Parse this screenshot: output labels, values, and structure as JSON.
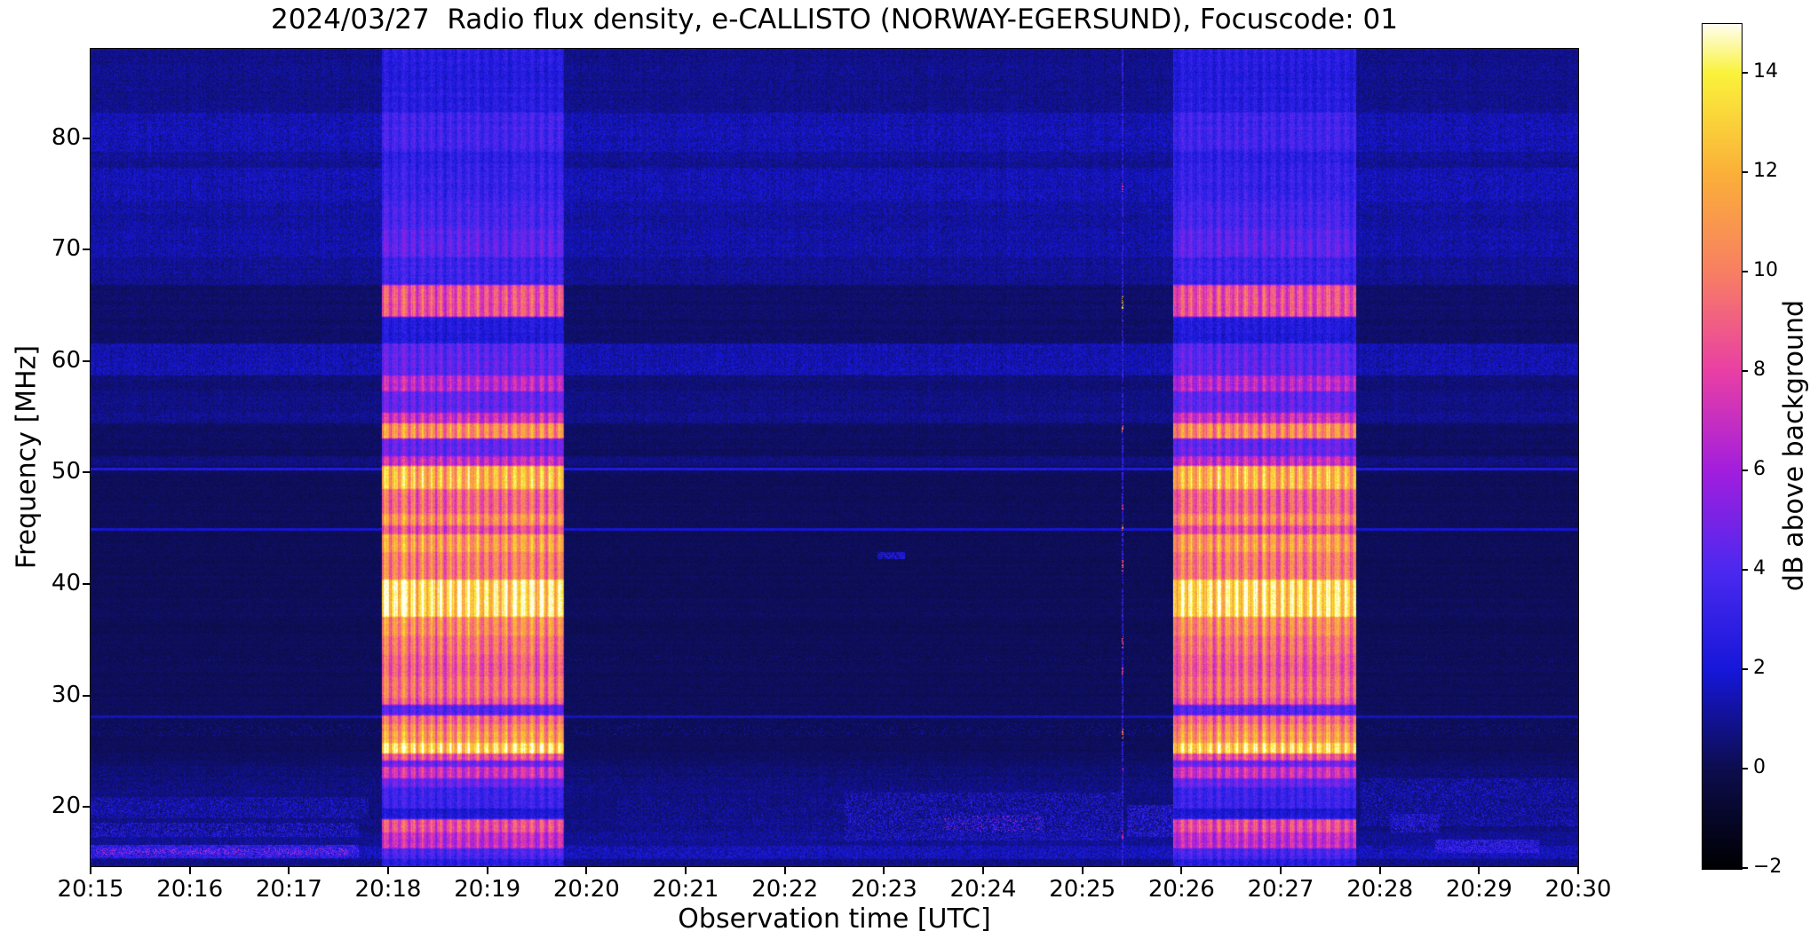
{
  "figure": {
    "title": "2024/03/27  Radio flux density, e-CALLISTO (NORWAY-EGERSUND), Focuscode: 01",
    "xlabel": "Observation time [UTC]",
    "ylabel": "Frequency [MHz]"
  },
  "axes": {
    "x_tick_labels": [
      "20:15",
      "20:16",
      "20:17",
      "20:18",
      "20:19",
      "20:20",
      "20:21",
      "20:22",
      "20:23",
      "20:24",
      "20:25",
      "20:26",
      "20:27",
      "20:28",
      "20:29",
      "20:30"
    ],
    "y_tick_labels": [
      "80",
      "70",
      "60",
      "50",
      "40",
      "30",
      "20"
    ],
    "y_tick_values": [
      80,
      70,
      60,
      50,
      40,
      30,
      20
    ]
  },
  "colorbar": {
    "label": "dB above background",
    "tick_labels": [
      "14",
      "12",
      "10",
      "8",
      "6",
      "4",
      "2",
      "0",
      "−2"
    ],
    "tick_values": [
      14,
      12,
      10,
      8,
      6,
      4,
      2,
      0,
      -2
    ],
    "vmin": -2,
    "vmax": 15
  },
  "chart_data": {
    "type": "heatmap",
    "title": "2024/03/27  Radio flux density, e-CALLISTO (NORWAY-EGERSUND), Focuscode: 01",
    "xlabel": "Observation time [UTC]",
    "ylabel": "Frequency [MHz]",
    "date": "2024/03/27",
    "station": "NORWAY-EGERSUND",
    "focuscode": "01",
    "x_range_utc": [
      "20:15",
      "20:30"
    ],
    "duration_min": 15,
    "y_range_mhz": [
      14.7,
      88.0
    ],
    "value_unit": "dB above background",
    "value_range": [
      -2,
      15
    ],
    "grid": false,
    "colormap_stops": [
      [
        -2,
        "#000002"
      ],
      [
        0,
        "#0d0d4e"
      ],
      [
        2,
        "#1617d9"
      ],
      [
        4,
        "#4c29f0"
      ],
      [
        6,
        "#a21edd"
      ],
      [
        8,
        "#e93fa5"
      ],
      [
        10,
        "#f87f63"
      ],
      [
        12,
        "#fbb039"
      ],
      [
        14,
        "#faf23b"
      ],
      [
        15,
        "#fffef0"
      ]
    ],
    "bursts": [
      {
        "start_utc": "20:17:56",
        "end_utc": "20:19:46",
        "t0_min": 2.93,
        "t1_min": 4.77
      },
      {
        "start_utc": "20:25:55",
        "end_utc": "20:27:46",
        "t0_min": 10.91,
        "t1_min": 12.76
      }
    ],
    "vertical_line": {
      "utc": "20:25:25",
      "t_min": 10.405,
      "base_db": 3.2,
      "dash_fraction": 0.6,
      "bright_dots": [
        [
          75.2,
          75.9,
          7
        ],
        [
          64.6,
          65.8,
          13
        ],
        [
          53.6,
          54.3,
          9
        ],
        [
          46.5,
          47.2,
          7.5
        ],
        [
          44.6,
          45.5,
          10
        ],
        [
          41.0,
          42.2,
          8.5
        ],
        [
          34.3,
          35.4,
          8
        ],
        [
          31.8,
          32.6,
          8
        ],
        [
          26.2,
          27.0,
          10
        ],
        [
          23.0,
          23.6,
          6
        ],
        [
          17.2,
          18.0,
          7
        ]
      ]
    },
    "bands_f0_f1_bgdb_burstdb": [
      [
        82.3,
        88.0,
        0.9,
        2.6
      ],
      [
        78.8,
        82.3,
        1.5,
        3.6
      ],
      [
        77.3,
        78.8,
        1.0,
        2.9
      ],
      [
        74.3,
        77.3,
        1.5,
        3.3
      ],
      [
        71.8,
        74.3,
        1.2,
        3.8
      ],
      [
        69.3,
        71.8,
        1.3,
        4.4
      ],
      [
        66.8,
        69.3,
        1.0,
        3.4
      ],
      [
        64.0,
        66.8,
        0.4,
        8.6
      ],
      [
        61.6,
        64.0,
        0.4,
        2.4
      ],
      [
        58.7,
        61.6,
        1.4,
        4.4
      ],
      [
        57.3,
        58.7,
        0.6,
        6.6
      ],
      [
        55.4,
        57.3,
        0.8,
        4.6
      ],
      [
        54.4,
        55.4,
        0.9,
        7.2
      ],
      [
        53.1,
        54.4,
        0.4,
        10.6
      ],
      [
        51.5,
        53.1,
        0.3,
        4.6
      ],
      [
        50.6,
        51.5,
        0.7,
        7.0
      ],
      [
        48.5,
        50.6,
        0.2,
        12.2
      ],
      [
        46.3,
        48.5,
        0.2,
        9.2
      ],
      [
        45.3,
        46.3,
        0.2,
        10.6
      ],
      [
        44.5,
        45.3,
        0.2,
        8.2
      ],
      [
        42.9,
        44.5,
        0.15,
        11.2
      ],
      [
        40.4,
        42.9,
        0.15,
        10.0
      ],
      [
        37.1,
        40.4,
        0.15,
        13.8
      ],
      [
        35.4,
        37.1,
        0.15,
        10.6
      ],
      [
        33.7,
        35.4,
        0.15,
        9.6
      ],
      [
        31.7,
        33.7,
        0.15,
        9.0
      ],
      [
        29.8,
        31.7,
        0.15,
        9.6
      ],
      [
        29.2,
        29.8,
        0.2,
        8.6
      ],
      [
        28.2,
        29.2,
        0.2,
        4.2
      ],
      [
        27.4,
        28.2,
        0.2,
        9.2
      ],
      [
        26.8,
        27.4,
        0.2,
        10.4
      ],
      [
        25.8,
        26.8,
        0.2,
        11.2
      ],
      [
        24.8,
        25.8,
        0.2,
        13.4
      ],
      [
        24.2,
        24.8,
        0.3,
        8.4
      ],
      [
        23.6,
        24.2,
        0.4,
        4.6
      ],
      [
        22.6,
        23.6,
        0.5,
        7.2
      ],
      [
        21.8,
        22.6,
        0.6,
        4.8
      ],
      [
        19.9,
        21.8,
        0.7,
        3.4
      ],
      [
        18.9,
        19.9,
        0.7,
        2.2
      ],
      [
        17.7,
        18.9,
        0.8,
        8.4
      ],
      [
        16.3,
        17.7,
        1.0,
        7.0
      ],
      [
        15.3,
        16.3,
        1.3,
        3.8
      ],
      [
        14.7,
        15.3,
        0.8,
        2.6
      ]
    ],
    "narrowband_lines_mhz": [
      {
        "f": 50.3,
        "db": 2.4
      },
      {
        "f": 44.9,
        "db": 1.9
      },
      {
        "f": 28.1,
        "db": 1.5
      }
    ],
    "rfi_patches_t0_t1_f0_f1_density_db": [
      [
        0,
        2.8,
        19.0,
        20.9,
        0.5,
        2.2
      ],
      [
        0,
        2.7,
        17.3,
        18.6,
        0.45,
        2.8
      ],
      [
        0,
        2.7,
        15.4,
        16.6,
        0.8,
        3.6
      ],
      [
        0.05,
        2.6,
        15.7,
        16.3,
        0.35,
        6.0
      ],
      [
        0,
        15,
        15.4,
        16.5,
        0.45,
        2.2
      ],
      [
        0,
        15,
        21.3,
        23.3,
        0.1,
        1.4
      ],
      [
        0,
        15,
        26.4,
        27.5,
        0.12,
        1.3
      ],
      [
        0,
        15,
        33.0,
        33.6,
        0.07,
        1.2
      ],
      [
        5.3,
        7.6,
        17.0,
        20.8,
        0.18,
        1.8
      ],
      [
        7.6,
        10.4,
        17.0,
        21.3,
        0.4,
        2.6
      ],
      [
        8.6,
        9.6,
        17.8,
        19.2,
        0.18,
        5.0
      ],
      [
        10.45,
        10.91,
        17.3,
        20.2,
        0.55,
        3.0
      ],
      [
        12.8,
        15,
        18.3,
        22.6,
        0.35,
        2.2
      ],
      [
        13.55,
        14.6,
        15.9,
        17.1,
        0.7,
        3.4
      ],
      [
        13.1,
        13.6,
        17.7,
        19.4,
        0.5,
        3.0
      ],
      [
        7.93,
        8.21,
        42.2,
        42.9,
        0.8,
        2.4
      ]
    ]
  }
}
